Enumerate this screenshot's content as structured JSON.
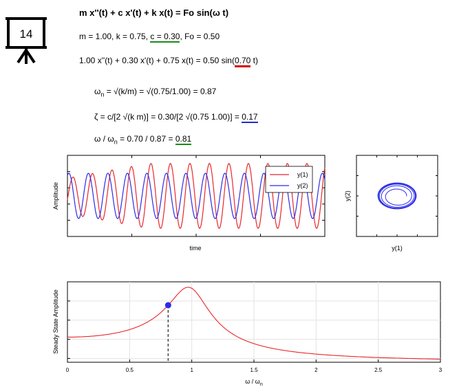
{
  "board": {
    "number": "14"
  },
  "equations": {
    "title": "m x''(t) + c x'(t) + k x(t) = Fo sin(ω t)",
    "params_a": "m = 1.00, k = 0.75, ",
    "params_c": "c = 0.30",
    "params_b": ", Fo = 0.50",
    "instance_a": "1.00 x''(t) + 0.30 x'(t) + 0.75 x(t) = 0.50 sin(",
    "instance_w": "0.70",
    "instance_b": " t)",
    "omega_n_lhs": "ω",
    "omega_n_sub": "n",
    "omega_n_rhs": " = √(k/m) = √(0.75/1.00) = 0.87",
    "zeta_a": "ζ = c/[2 √(k m)] = 0.30/[2 √(0.75 1.00)] = ",
    "zeta_val": "0.17",
    "ratio_a": "ω / ω",
    "ratio_sub": "n",
    "ratio_b": " = 0.70 / 0.87 = ",
    "ratio_val": "0.81"
  },
  "colors": {
    "red": "#e8262b",
    "blue": "#2b2be8",
    "green": "#1a8a1a"
  },
  "chart_data": [
    {
      "type": "line",
      "ylabel": "Amplitude",
      "xlabel": "time",
      "series": [
        {
          "name": "y(1)",
          "color": "#e8262b",
          "amplitude": 0.8,
          "frequency": 0.7
        },
        {
          "name": "y(2)",
          "color": "#2b2be8",
          "amplitude": 0.56,
          "frequency": 0.7
        }
      ],
      "legend": "top-right",
      "grid": false
    },
    {
      "type": "line",
      "subtype": "phase-portrait",
      "xlabel": "y(1)",
      "ylabel": "y(2)",
      "series": [
        {
          "name": "trajectory",
          "color": "#2b2be8"
        }
      ],
      "grid": false
    },
    {
      "type": "line",
      "ylabel": "Steady State Amplitude",
      "xlabel": "ω / ω",
      "xlabel_sub": "n",
      "xlim": [
        0,
        3
      ],
      "x_ticks": [
        "0",
        "0.5",
        "1",
        "1.5",
        "2",
        "2.5",
        "3"
      ],
      "zeta": 0.17,
      "marker": {
        "x": 0.81
      },
      "grid": true
    }
  ]
}
